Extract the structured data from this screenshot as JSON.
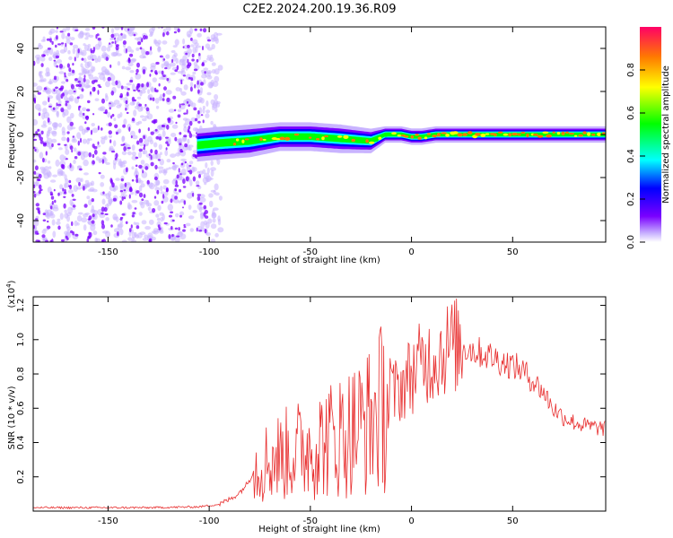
{
  "figure": {
    "title": "C2E2.2024.200.19.36.R09"
  },
  "colors": {
    "strong_scatter": "#7a00ff",
    "faint_scatter": "#c9b3ff",
    "snr_line": "#e83030"
  },
  "chart_data": [
    {
      "type": "heatmap",
      "name": "spectrogram",
      "title": "C2E2.2024.200.19.36.R09",
      "xlabel": "Height of straight line (km)",
      "ylabel": "Frequency (Hz)",
      "xlim": [
        -187,
        96
      ],
      "ylim": [
        -50,
        50
      ],
      "xticks": [
        -150,
        -100,
        -50,
        0,
        50
      ],
      "yticks": [
        -40,
        -20,
        0,
        20,
        40
      ],
      "noise_region": {
        "x_from": -187,
        "x_to": -100,
        "freq_range": [
          -50,
          50
        ]
      },
      "signal_band": {
        "x": [
          -106,
          -95,
          -80,
          -65,
          -50,
          -35,
          -20,
          -13,
          -5,
          0,
          5,
          12,
          25,
          50,
          75,
          96
        ],
        "center_hz": [
          -5,
          -4,
          -3,
          -1,
          -1,
          -2,
          -3,
          0,
          0,
          -1,
          -1,
          0,
          0,
          0,
          0,
          0
        ],
        "half_width_hz": [
          4,
          4,
          4,
          3.5,
          3.5,
          3.5,
          3,
          2,
          2,
          2,
          2,
          2,
          2,
          2,
          2,
          2
        ]
      },
      "colorbar": {
        "label": "Normalized spectral amplitude",
        "range": [
          0.0,
          1.0
        ],
        "ticks": [
          "0.0",
          "0.2",
          "0.4",
          "0.6",
          "0.8"
        ],
        "colormap": "rainbow"
      }
    },
    {
      "type": "line",
      "name": "snr",
      "xlabel": "Height of straight line (km)",
      "ylabel": "SNR (10 * v/v)",
      "y_exponent_label": "(x10",
      "y_exponent_power": "4",
      "y_exponent_close": ")",
      "xlim": [
        -187,
        96
      ],
      "ylim": [
        0,
        12500
      ],
      "xticks": [
        -150,
        -100,
        -50,
        0,
        50
      ],
      "yticks": [
        2000,
        4000,
        6000,
        8000,
        10000,
        12000
      ],
      "ytick_labels": [
        "0.2",
        "0.4",
        "0.6",
        "0.8",
        "1.0",
        "1.2"
      ],
      "series": [
        {
          "name": "SNR",
          "x": [
            -187,
            -160,
            -130,
            -105,
            -95,
            -88,
            -84,
            -80,
            -78,
            -75,
            -70,
            -60,
            -50,
            -40,
            -30,
            -20,
            -15,
            -10,
            -5,
            0,
            5,
            10,
            15,
            20,
            25,
            30,
            35,
            40,
            45,
            50,
            55,
            60,
            65,
            70,
            75,
            80,
            85,
            90,
            96
          ],
          "y": [
            200,
            200,
            200,
            250,
            400,
            800,
            1200,
            1800,
            2400,
            2700,
            3000,
            3400,
            3800,
            4200,
            4700,
            5300,
            6000,
            6700,
            7300,
            8000,
            8600,
            8900,
            9300,
            9700,
            9600,
            9400,
            9200,
            9000,
            8700,
            8500,
            8200,
            7600,
            7000,
            6000,
            5500,
            5200,
            5000,
            4900,
            4800
          ]
        }
      ]
    }
  ]
}
